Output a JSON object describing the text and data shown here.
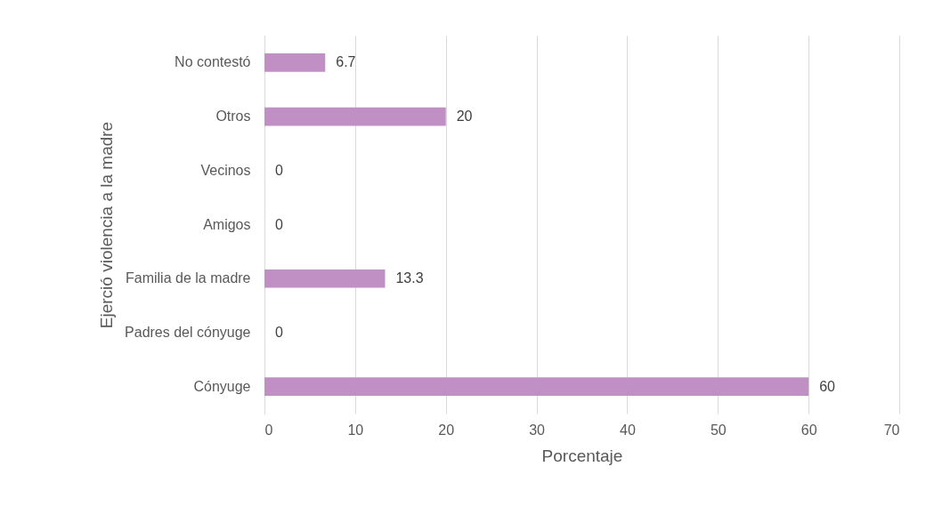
{
  "chart_data": {
    "type": "bar",
    "orientation": "horizontal",
    "xlabel": "Porcentaje",
    "ylabel": "Ejerció  violencia a la madre",
    "categories": [
      "No contestó",
      "Otros",
      "Vecinos",
      "Amigos",
      "Familia de la madre",
      "Padres del cónyuge",
      "Cónyuge"
    ],
    "values": [
      6.7,
      20,
      0,
      0,
      13.3,
      0,
      60
    ],
    "color": "#c08fc4",
    "xlim": [
      0,
      70
    ],
    "xticks": [
      0,
      10,
      20,
      30,
      40,
      50,
      60,
      70
    ],
    "grid": "x",
    "data_labels": true
  }
}
